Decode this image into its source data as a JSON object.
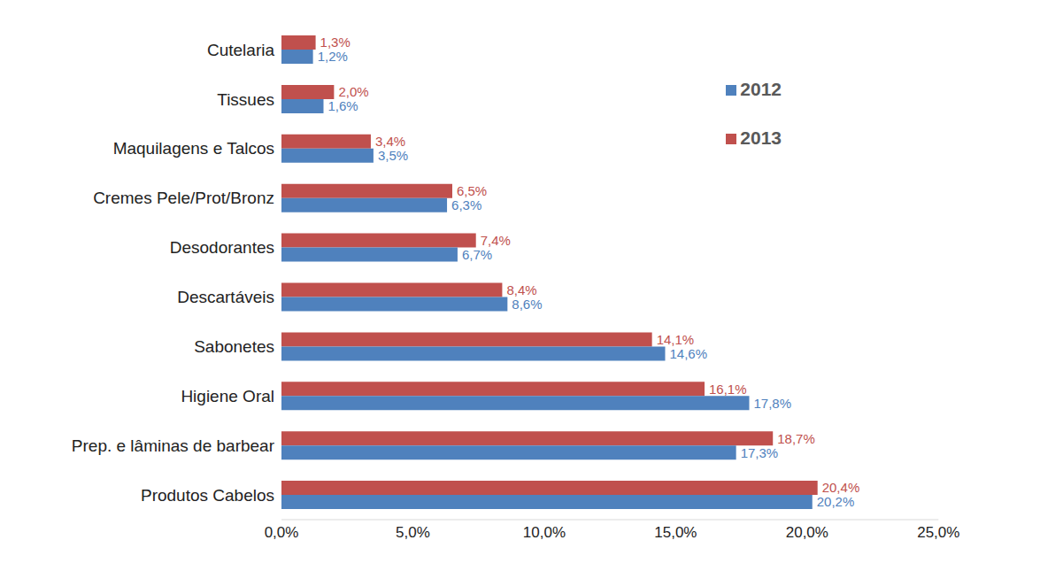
{
  "chart_data": {
    "type": "bar",
    "orientation": "horizontal",
    "categories": [
      "Cutelaria",
      "Tissues",
      "Maquilagens e Talcos",
      "Cremes Pele/Prot/Bronz",
      "Desodorantes",
      "Descartáveis",
      "Sabonetes",
      "Higiene Oral",
      "Prep. e lâminas de barbear",
      "Produtos Cabelos"
    ],
    "series": [
      {
        "name": "2013",
        "color": "#c0504d",
        "values": [
          1.3,
          2.0,
          3.4,
          6.5,
          7.4,
          8.4,
          14.1,
          16.1,
          18.7,
          20.4
        ],
        "value_labels": [
          "1,3%",
          "2,0%",
          "3,4%",
          "6,5%",
          "7,4%",
          "8,4%",
          "14,1%",
          "16,1%",
          "18,7%",
          "20,4%"
        ]
      },
      {
        "name": "2012",
        "color": "#4f81bd",
        "values": [
          1.2,
          1.6,
          3.5,
          6.3,
          6.7,
          8.6,
          14.6,
          17.8,
          17.3,
          20.2
        ],
        "value_labels": [
          "1,2%",
          "1,6%",
          "3,5%",
          "6,3%",
          "6,7%",
          "8,6%",
          "14,6%",
          "17,8%",
          "17,3%",
          "20,2%"
        ]
      }
    ],
    "xlim": [
      0,
      25
    ],
    "xticks": [
      {
        "value": 0,
        "label": "0,0%"
      },
      {
        "value": 5,
        "label": "5,0%"
      },
      {
        "value": 10,
        "label": "10,0%"
      },
      {
        "value": 15,
        "label": "15,0%"
      },
      {
        "value": 20,
        "label": "20,0%"
      },
      {
        "value": 25,
        "label": "25,0%"
      }
    ],
    "grid": false,
    "legend": "upper right",
    "data_labels": true
  }
}
